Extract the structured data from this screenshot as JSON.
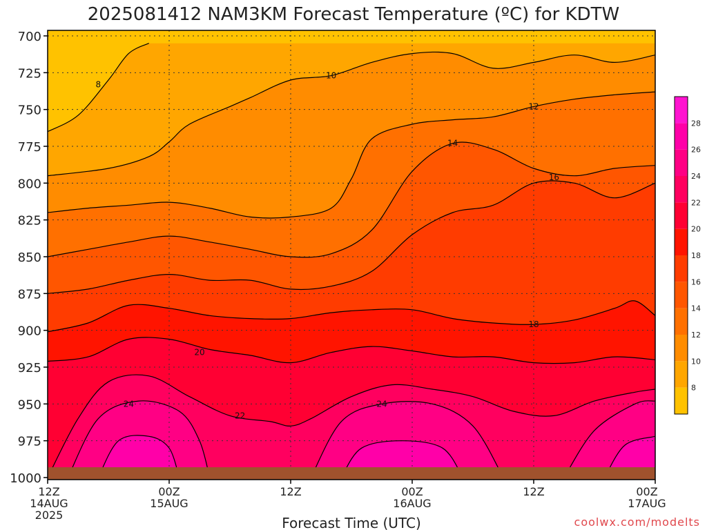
{
  "chart_data": {
    "type": "heatmap",
    "title": "2025081412 NAM3KM Forecast Temperature (ºC) for KDTW",
    "xlabel": "Forecast Time (UTC)",
    "ylabel": "",
    "y_ticks": [
      "700",
      "725",
      "750",
      "775",
      "800",
      "825",
      "850",
      "875",
      "900",
      "925",
      "950",
      "975",
      "1000"
    ],
    "y_values": [
      700,
      725,
      750,
      775,
      800,
      825,
      850,
      875,
      900,
      925,
      950,
      975,
      1000
    ],
    "ylim": [
      700,
      1000
    ],
    "y_reversed": true,
    "x_ticks": [
      {
        "hour": 0,
        "line1": "12Z",
        "line2": "14AUG",
        "line3": "2025"
      },
      {
        "hour": 12,
        "line1": "00Z",
        "line2": "15AUG",
        "line3": ""
      },
      {
        "hour": 24,
        "line1": "12Z",
        "line2": "",
        "line3": ""
      },
      {
        "hour": 36,
        "line1": "00Z",
        "line2": "16AUG",
        "line3": ""
      },
      {
        "hour": 48,
        "line1": "12Z",
        "line2": "",
        "line3": ""
      },
      {
        "hour": 60,
        "line1": "00Z",
        "line2": "17AUG",
        "line3": ""
      }
    ],
    "xlim": [
      0,
      60
    ],
    "grid": true,
    "colorbar": {
      "labels": [
        8,
        10,
        12,
        14,
        16,
        18,
        20,
        22,
        24,
        26,
        28
      ],
      "levels": [
        6,
        8,
        10,
        12,
        14,
        16,
        18,
        20,
        22,
        24,
        26,
        28,
        30
      ],
      "colors": [
        "#ffc200",
        "#ffa600",
        "#ff8c00",
        "#ff7000",
        "#ff5600",
        "#ff3c00",
        "#ff1400",
        "#ff0033",
        "#ff005f",
        "#ff0084",
        "#ff00a8",
        "#ff14d0"
      ]
    },
    "contours": [
      {
        "value": 8,
        "label": "8",
        "points": [
          [
            0,
            765
          ],
          [
            3,
            754
          ],
          [
            6,
            730
          ],
          [
            8,
            712
          ],
          [
            10,
            705
          ]
        ],
        "label_at": [
          5,
          733
        ]
      },
      {
        "value": 10,
        "label": "10",
        "points": [
          [
            0,
            795
          ],
          [
            6,
            790
          ],
          [
            10,
            782
          ],
          [
            12,
            772
          ],
          [
            14,
            760
          ],
          [
            18,
            748
          ],
          [
            20,
            742
          ],
          [
            24,
            730
          ],
          [
            28,
            727
          ],
          [
            32,
            718
          ],
          [
            36,
            712
          ],
          [
            40,
            712
          ],
          [
            44,
            722
          ],
          [
            48,
            718
          ],
          [
            52,
            713
          ],
          [
            56,
            718
          ],
          [
            60,
            713
          ]
        ],
        "label_at": [
          28,
          727
        ]
      },
      {
        "value": 12,
        "label": "12",
        "points": [
          [
            0,
            820
          ],
          [
            4,
            817
          ],
          [
            8,
            815
          ],
          [
            12,
            813
          ],
          [
            16,
            817
          ],
          [
            20,
            823
          ],
          [
            24,
            823
          ],
          [
            28,
            817
          ],
          [
            30,
            797
          ],
          [
            32,
            770
          ],
          [
            36,
            760
          ],
          [
            40,
            757
          ],
          [
            44,
            755
          ],
          [
            48,
            748
          ],
          [
            52,
            743
          ],
          [
            56,
            740
          ],
          [
            60,
            738
          ]
        ],
        "label_at": [
          48,
          748
        ]
      },
      {
        "value": 14,
        "label": "14",
        "points": [
          [
            0,
            850
          ],
          [
            4,
            845
          ],
          [
            8,
            840
          ],
          [
            12,
            836
          ],
          [
            16,
            840
          ],
          [
            20,
            845
          ],
          [
            24,
            850
          ],
          [
            28,
            848
          ],
          [
            32,
            832
          ],
          [
            36,
            792
          ],
          [
            40,
            773
          ],
          [
            44,
            777
          ],
          [
            48,
            790
          ],
          [
            52,
            795
          ],
          [
            56,
            790
          ],
          [
            60,
            788
          ]
        ],
        "label_at": [
          40,
          773
        ]
      },
      {
        "value": 16,
        "label": "16",
        "points": [
          [
            0,
            875
          ],
          [
            4,
            872
          ],
          [
            8,
            866
          ],
          [
            12,
            862
          ],
          [
            16,
            866
          ],
          [
            20,
            866
          ],
          [
            24,
            872
          ],
          [
            28,
            870
          ],
          [
            32,
            860
          ],
          [
            36,
            835
          ],
          [
            40,
            820
          ],
          [
            44,
            815
          ],
          [
            48,
            800
          ],
          [
            52,
            800
          ],
          [
            56,
            810
          ],
          [
            60,
            800
          ]
        ],
        "label_at": [
          50,
          796
        ]
      },
      {
        "value": 18,
        "label": "18",
        "points": [
          [
            0,
            901
          ],
          [
            4,
            895
          ],
          [
            8,
            883
          ],
          [
            12,
            885
          ],
          [
            16,
            890
          ],
          [
            20,
            892
          ],
          [
            24,
            892
          ],
          [
            28,
            888
          ],
          [
            32,
            886
          ],
          [
            36,
            886
          ],
          [
            40,
            892
          ],
          [
            44,
            895
          ],
          [
            48,
            896
          ],
          [
            52,
            893
          ],
          [
            56,
            885
          ],
          [
            58,
            880
          ],
          [
            60,
            890
          ]
        ],
        "label_at": [
          48,
          896
        ]
      },
      {
        "value": 20,
        "label": "20",
        "points": [
          [
            0,
            921
          ],
          [
            4,
            918
          ],
          [
            8,
            906
          ],
          [
            12,
            906
          ],
          [
            16,
            913
          ],
          [
            20,
            917
          ],
          [
            24,
            922
          ],
          [
            28,
            915
          ],
          [
            32,
            911
          ],
          [
            36,
            914
          ],
          [
            40,
            918
          ],
          [
            44,
            918
          ],
          [
            48,
            922
          ],
          [
            52,
            922
          ],
          [
            56,
            918
          ],
          [
            60,
            920
          ]
        ],
        "label_at": [
          15,
          915
        ]
      },
      {
        "value": 22,
        "label": "22",
        "points": [
          [
            0,
            1000
          ],
          [
            3,
            960
          ],
          [
            6,
            935
          ],
          [
            10,
            931
          ],
          [
            14,
            945
          ],
          [
            18,
            958
          ],
          [
            22,
            962
          ],
          [
            24,
            965
          ],
          [
            26,
            960
          ],
          [
            30,
            945
          ],
          [
            34,
            937
          ],
          [
            38,
            940
          ],
          [
            42,
            945
          ],
          [
            46,
            955
          ],
          [
            50,
            958
          ],
          [
            54,
            948
          ],
          [
            58,
            942
          ],
          [
            60,
            940
          ]
        ],
        "label_at": [
          19,
          958
        ]
      },
      {
        "value": 24,
        "label": "24",
        "points": [
          [
            2,
            1000
          ],
          [
            5,
            960
          ],
          [
            9,
            948
          ],
          [
            13,
            955
          ],
          [
            15,
            975
          ],
          [
            16,
            1000
          ]
        ],
        "label_at": [
          8,
          950
        ]
      },
      {
        "value": 24,
        "label": "24",
        "points": [
          [
            26,
            1000
          ],
          [
            29,
            962
          ],
          [
            33,
            950
          ],
          [
            38,
            950
          ],
          [
            42,
            965
          ],
          [
            45,
            1000
          ]
        ],
        "label_at": [
          33,
          950
        ]
      },
      {
        "value": 24,
        "label": "",
        "points": [
          [
            51,
            1000
          ],
          [
            54,
            968
          ],
          [
            58,
            950
          ],
          [
            60,
            948
          ]
        ],
        "label_at": null
      },
      {
        "value": 26,
        "label": "",
        "points": [
          [
            5,
            1000
          ],
          [
            7,
            975
          ],
          [
            10,
            972
          ],
          [
            12,
            980
          ],
          [
            13,
            1000
          ]
        ],
        "label_at": null
      },
      {
        "value": 26,
        "label": "",
        "points": [
          [
            29,
            1000
          ],
          [
            31,
            980
          ],
          [
            35,
            975
          ],
          [
            39,
            980
          ],
          [
            41,
            1000
          ]
        ],
        "label_at": null
      },
      {
        "value": 26,
        "label": "",
        "points": [
          [
            55,
            1000
          ],
          [
            57,
            978
          ],
          [
            60,
            972
          ]
        ],
        "label_at": null
      }
    ],
    "fill_bands": [
      {
        "level": 0,
        "upper": null
      },
      {
        "level": 1,
        "upper": 0
      },
      {
        "level": 2,
        "upper": 1
      },
      {
        "level": 3,
        "upper": 2
      },
      {
        "level": 4,
        "upper": 3
      },
      {
        "level": 5,
        "upper": 4
      },
      {
        "level": 6,
        "upper": 5
      },
      {
        "level": 7,
        "upper": 6
      }
    ],
    "band_colors": [
      "#ffa600",
      "#ff8c00",
      "#ff7000",
      "#ff5600",
      "#ff3c00",
      "#ff1400",
      "#ff0033",
      "#ff005f"
    ],
    "top_band_color": "#ffc200",
    "warm_blobs": [
      {
        "contour_index": 8,
        "color": "#ff0084"
      },
      {
        "contour_index": 9,
        "color": "#ff0084"
      },
      {
        "contour_index": 10,
        "color": "#ff0084"
      },
      {
        "contour_index": 11,
        "color": "#ff00a8"
      },
      {
        "contour_index": 12,
        "color": "#ff00a8"
      },
      {
        "contour_index": 13,
        "color": "#ff00a8"
      }
    ],
    "ground": {
      "from": 993,
      "color": "#a0522d"
    }
  },
  "credit": "coolwx.com/modelts"
}
